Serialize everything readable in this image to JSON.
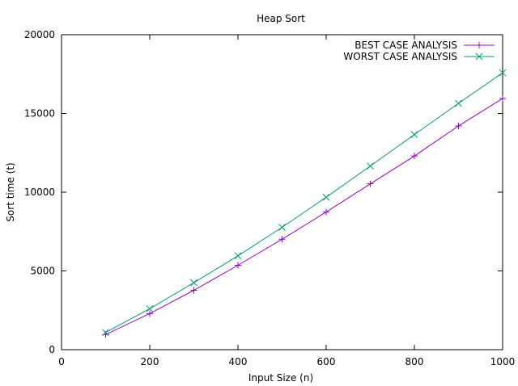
{
  "chart_data": {
    "type": "line",
    "title": "Heap Sort",
    "xlabel": "Input Size (n)",
    "ylabel": "Sort time (t)",
    "xlim": [
      0,
      1000
    ],
    "ylim": [
      0,
      20000
    ],
    "xticks": [
      0,
      200,
      400,
      600,
      800,
      1000
    ],
    "yticks": [
      0,
      5000,
      10000,
      15000,
      20000
    ],
    "grid": false,
    "legend_position": "top-right",
    "x": [
      100,
      200,
      300,
      400,
      500,
      600,
      700,
      800,
      900,
      1000
    ],
    "series": [
      {
        "name": "BEST CASE ANALYSIS",
        "color": "#9400d3",
        "marker": "plus",
        "values": [
          960,
          2290,
          3770,
          5360,
          7010,
          8740,
          10530,
          12300,
          14210,
          15950
        ]
      },
      {
        "name": "WORST CASE ANALYSIS",
        "color": "#009e73",
        "marker": "cross",
        "values": [
          1090,
          2600,
          4250,
          5960,
          7770,
          9680,
          11660,
          13660,
          15640,
          17580
        ]
      }
    ]
  }
}
